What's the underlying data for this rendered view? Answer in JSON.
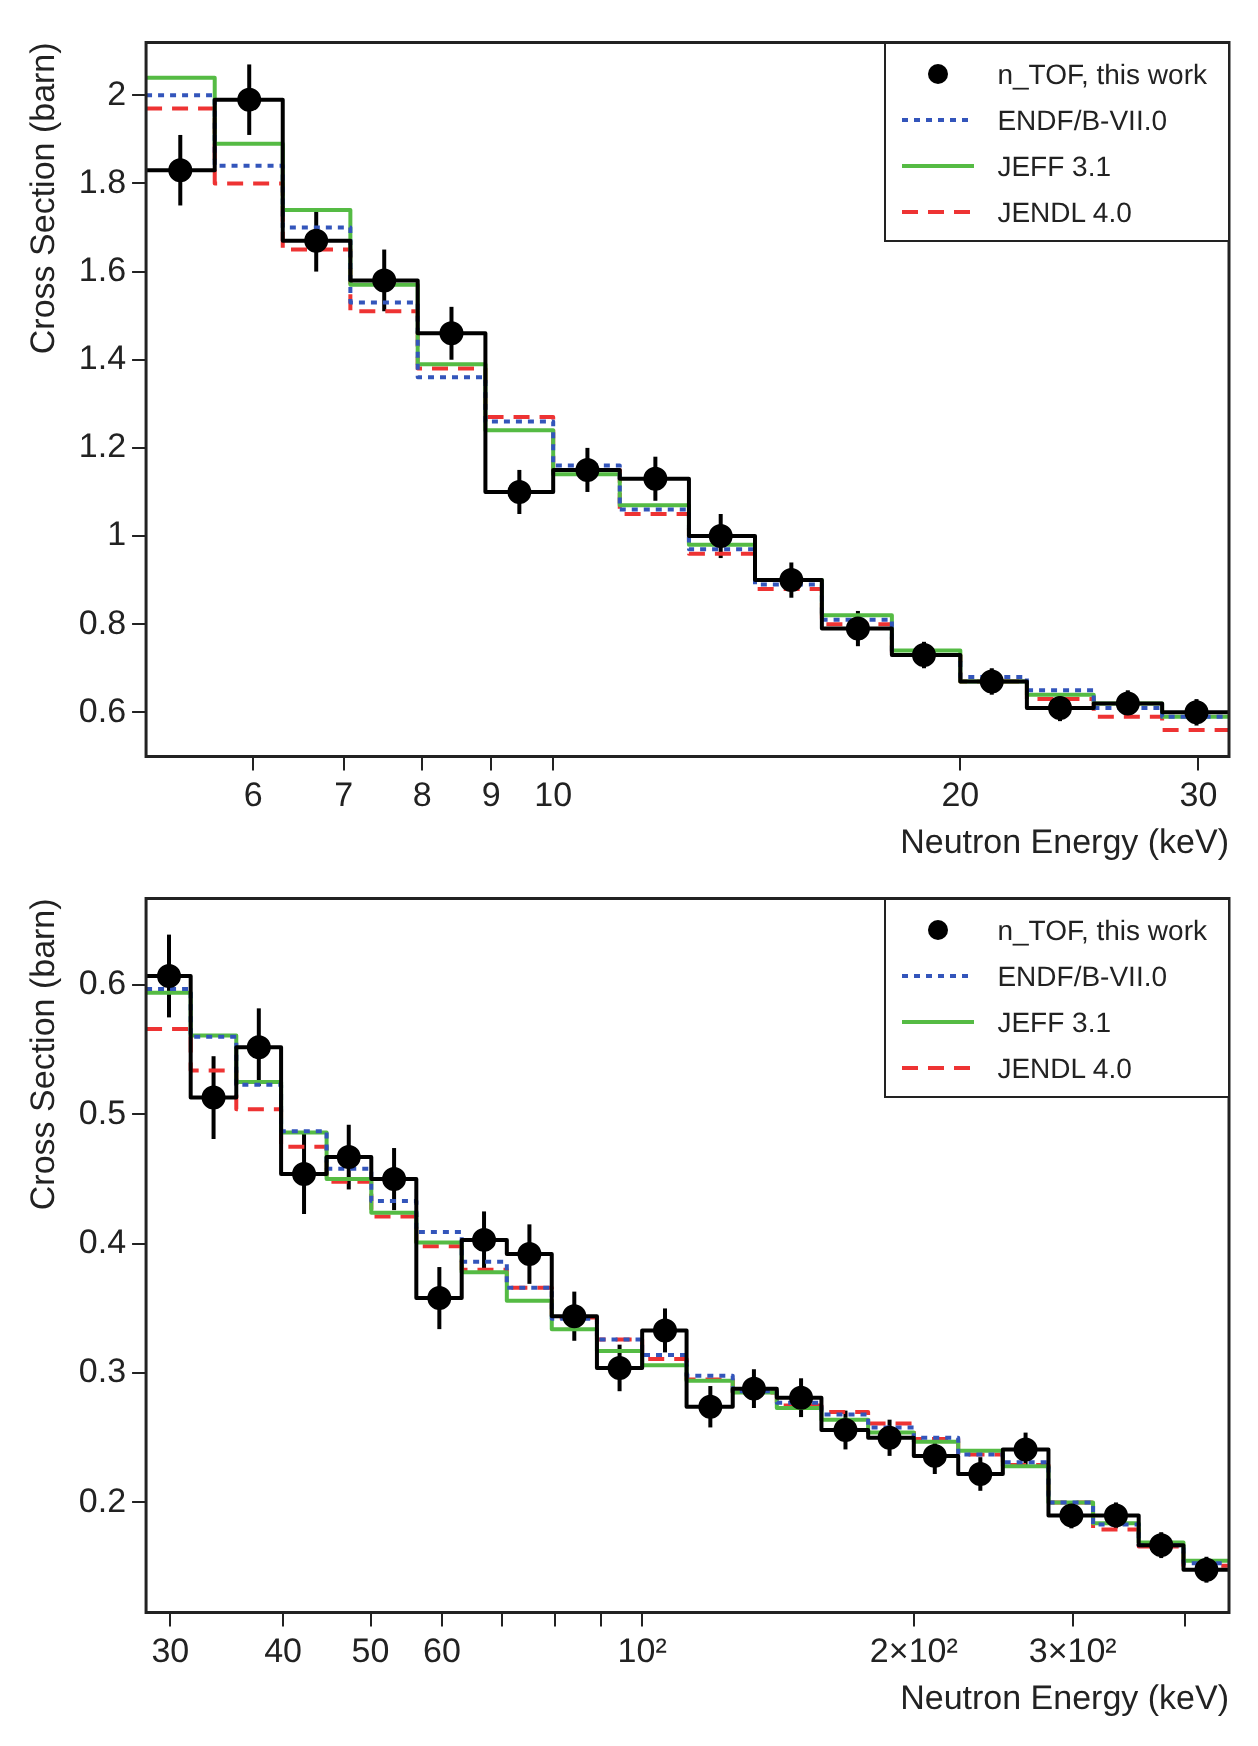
{
  "chart_data": [
    {
      "type": "histogram",
      "xlabel": "Neutron Energy (keV)",
      "ylabel": "Cross Section (barn)",
      "log": "x",
      "grid": false,
      "legend": "top right",
      "bins": [
        5,
        5.62,
        6.31,
        7.08,
        7.94,
        8.91,
        10,
        11.2,
        12.6,
        14.1,
        15.8,
        17.8,
        20,
        22.4,
        25.1,
        28.2,
        31.6
      ],
      "xlim": [
        5,
        31.6
      ],
      "xticks": [
        6,
        7,
        8,
        9,
        10,
        20,
        30
      ],
      "ylim": [
        0.5,
        2.12
      ],
      "yticks": [
        0.6,
        0.8,
        1,
        1.2,
        1.4,
        1.6,
        1.8,
        2
      ],
      "series": [
        {
          "color": "#000000",
          "values": [
            1.83,
            1.99,
            1.67,
            1.58,
            1.46,
            1.1,
            1.15,
            1.13,
            1.0,
            0.9,
            0.79,
            0.73,
            0.67,
            0.61,
            0.62,
            0.6
          ]
        },
        {
          "name": "n_TOF, this work",
          "type": "scatter",
          "marker": "circle",
          "color": "#000000",
          "x": [
            5.3,
            5.96,
            6.68,
            7.5,
            8.41,
            9.44,
            10.6,
            11.9,
            13.3,
            15,
            16.8,
            18.8,
            21.1,
            23.7,
            26.6,
            29.9
          ],
          "values": [
            1.83,
            1.99,
            1.67,
            1.58,
            1.46,
            1.1,
            1.15,
            1.13,
            1.0,
            0.9,
            0.79,
            0.73,
            0.67,
            0.61,
            0.62,
            0.6
          ],
          "errors": [
            0.08,
            0.08,
            0.07,
            0.07,
            0.06,
            0.05,
            0.05,
            0.05,
            0.05,
            0.04,
            0.04,
            0.03,
            0.03,
            0.03,
            0.03,
            0.03
          ]
        },
        {
          "name": "ENDF/B-VII.0",
          "color": "#3355bb",
          "line_style": "dotted",
          "values": [
            2.0,
            1.84,
            1.7,
            1.53,
            1.36,
            1.26,
            1.16,
            1.06,
            0.97,
            0.89,
            0.81,
            0.73,
            0.68,
            0.65,
            0.61,
            0.59
          ]
        },
        {
          "name": "JEFF 3.1",
          "color": "#55bb44",
          "line_style": "solid",
          "values": [
            2.04,
            1.89,
            1.74,
            1.57,
            1.39,
            1.24,
            1.14,
            1.07,
            0.98,
            0.9,
            0.82,
            0.74,
            0.67,
            0.64,
            0.62,
            0.59
          ]
        },
        {
          "name": "JENDL 4.0",
          "color": "#ee3333",
          "line_style": "dashed",
          "values": [
            1.97,
            1.8,
            1.65,
            1.51,
            1.38,
            1.27,
            1.15,
            1.05,
            0.96,
            0.88,
            0.8,
            0.73,
            0.67,
            0.63,
            0.59,
            0.56
          ]
        }
      ]
    },
    {
      "type": "histogram",
      "xlabel": "Neutron Energy (keV)",
      "ylabel": "Cross Section (barn)",
      "log": "x",
      "grid": false,
      "legend": "top right",
      "bins": [
        28.2,
        31.6,
        35.5,
        39.8,
        44.7,
        50.1,
        56.2,
        63.1,
        70.8,
        79.4,
        89.1,
        100,
        112,
        126,
        141,
        158,
        178,
        200,
        224,
        251,
        282,
        316,
        355,
        398,
        447
      ],
      "xlim": [
        28.2,
        447
      ],
      "xticks": [
        30,
        40,
        50,
        60,
        {
          "value": 70,
          "label": null
        },
        {
          "value": 80,
          "label": null
        },
        {
          "value": 90,
          "label": null
        },
        {
          "value": 100,
          "label": "10²"
        },
        {
          "value": 200,
          "label": "2×10²"
        },
        {
          "value": 300,
          "label": "3×10²"
        },
        {
          "value": 400,
          "label": null
        }
      ],
      "ylim": [
        0.115,
        0.667
      ],
      "yticks": [
        0.2,
        0.3,
        0.4,
        0.5,
        0.6
      ],
      "series": [
        {
          "color": "#000000",
          "values": [
            0.607,
            0.513,
            0.552,
            0.454,
            0.467,
            0.45,
            0.358,
            0.403,
            0.392,
            0.344,
            0.304,
            0.333,
            0.274,
            0.288,
            0.281,
            0.256,
            0.25,
            0.236,
            0.222,
            0.241,
            0.19,
            0.19,
            0.167,
            0.148
          ]
        },
        {
          "name": "n_TOF, this work",
          "type": "scatter",
          "marker": "circle",
          "color": "#000000",
          "x": [
            29.9,
            33.5,
            37.6,
            42.2,
            47.3,
            53.1,
            59.6,
            66.8,
            75,
            84.1,
            94.4,
            106,
            119,
            133,
            150,
            168,
            188,
            211,
            237,
            266,
            299,
            335,
            376,
            422
          ],
          "values": [
            0.607,
            0.513,
            0.552,
            0.454,
            0.467,
            0.45,
            0.358,
            0.403,
            0.392,
            0.344,
            0.304,
            0.333,
            0.274,
            0.288,
            0.281,
            0.256,
            0.25,
            0.236,
            0.222,
            0.241,
            0.19,
            0.19,
            0.167,
            0.148
          ],
          "errors": [
            0.032,
            0.032,
            0.03,
            0.031,
            0.025,
            0.024,
            0.024,
            0.022,
            0.023,
            0.019,
            0.018,
            0.017,
            0.016,
            0.015,
            0.015,
            0.015,
            0.014,
            0.014,
            0.013,
            0.013,
            0.01,
            0.01,
            0.01,
            0.01
          ]
        },
        {
          "name": "ENDF/B-VII.0",
          "color": "#3355bb",
          "line_style": "dotted",
          "values": [
            0.597,
            0.56,
            0.523,
            0.487,
            0.458,
            0.433,
            0.409,
            0.386,
            0.366,
            0.342,
            0.326,
            0.314,
            0.298,
            0.286,
            0.277,
            0.268,
            0.258,
            0.25,
            0.237,
            0.231,
            0.2,
            0.183,
            0.167,
            0.153
          ]
        },
        {
          "name": "JEFF 3.1",
          "color": "#55bb44",
          "line_style": "solid",
          "values": [
            0.594,
            0.561,
            0.525,
            0.486,
            0.45,
            0.424,
            0.401,
            0.378,
            0.356,
            0.334,
            0.317,
            0.306,
            0.294,
            0.285,
            0.273,
            0.264,
            0.254,
            0.247,
            0.24,
            0.228,
            0.2,
            0.184,
            0.169,
            0.155
          ]
        },
        {
          "name": "JENDL 4.0",
          "color": "#ee3333",
          "line_style": "dashed",
          "values": [
            0.566,
            0.534,
            0.504,
            0.475,
            0.448,
            0.421,
            0.398,
            0.38,
            0.366,
            0.343,
            0.326,
            0.311,
            0.295,
            0.285,
            0.275,
            0.27,
            0.261,
            0.249,
            0.237,
            0.229,
            0.2,
            0.179,
            0.166,
            0.151
          ]
        }
      ]
    }
  ]
}
